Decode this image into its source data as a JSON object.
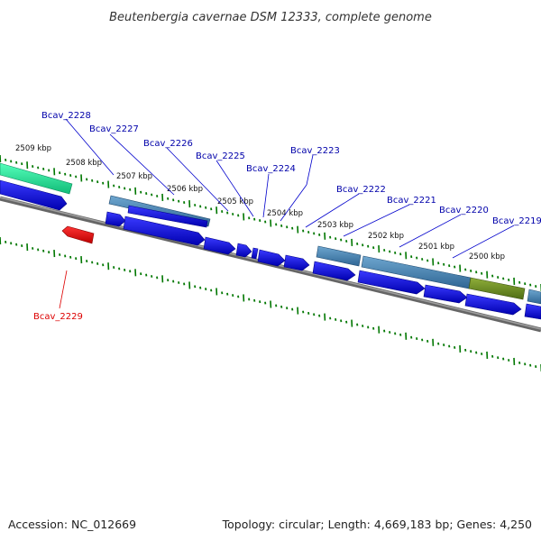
{
  "header": {
    "title": "Beutenbergia cavernae DSM 12333, complete genome"
  },
  "footer": {
    "accession": "Accession: NC_012669",
    "summary": "Topology: circular; Length: 4,669,183 bp; Genes: 4,250"
  },
  "scale_labels": [
    "2509 kbp",
    "2508 kbp",
    "2507 kbp",
    "2506 kbp",
    "2505 kbp",
    "2504 kbp",
    "2503 kbp",
    "2502 kbp",
    "2501 kbp",
    "2500 kbp"
  ],
  "gene_labels": [
    {
      "name": "Bcav_2228",
      "color": "#0000aa"
    },
    {
      "name": "Bcav_2227",
      "color": "#0000aa"
    },
    {
      "name": "Bcav_2226",
      "color": "#0000aa"
    },
    {
      "name": "Bcav_2225",
      "color": "#0000aa"
    },
    {
      "name": "Bcav_2224",
      "color": "#0000aa"
    },
    {
      "name": "Bcav_2223",
      "color": "#0000aa"
    },
    {
      "name": "Bcav_2222",
      "color": "#0000aa"
    },
    {
      "name": "Bcav_2221",
      "color": "#0000aa"
    },
    {
      "name": "Bcav_2220",
      "color": "#0000aa"
    },
    {
      "name": "Bcav_2219",
      "color": "#0000aa"
    },
    {
      "name": "Bcav_2229",
      "color": "#dd0000"
    }
  ],
  "colors": {
    "gene_forward": "#0000ee",
    "gene_reverse": "#ee0000",
    "cds_feature": "#4a86b8",
    "feature_teal": "#22dd99",
    "feature_olive": "#6b8e23",
    "backbone": "#808080",
    "tick_marks": "#007700"
  }
}
